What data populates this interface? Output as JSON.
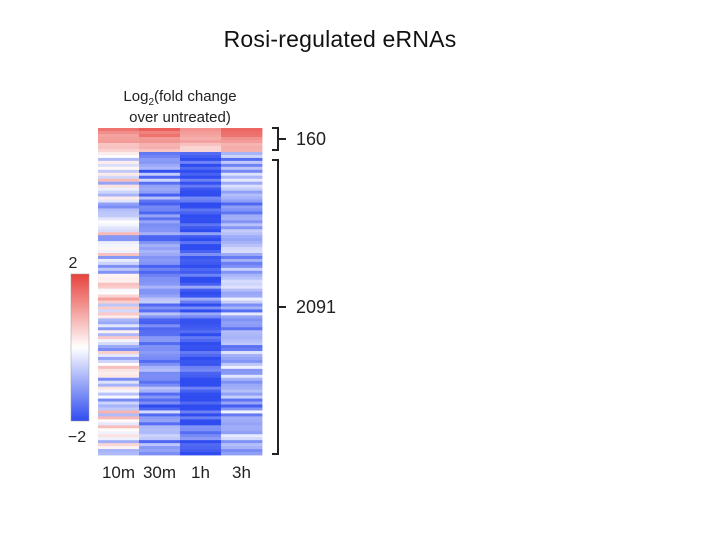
{
  "slide": {
    "title": "Rosi-regulated e​RNAs"
  },
  "chart_data": {
    "type": "heatmap",
    "title": "",
    "colorbar_title_base": "Log",
    "colorbar_title_sub": "2",
    "colorbar_title_rest": "(fold change",
    "colorbar_title_line2": "over untreated)",
    "colorbar_ticks": [
      "2",
      "−2"
    ],
    "value_range": [
      -2,
      2
    ],
    "colors": {
      "high": "#e8413b",
      "mid": "#ffffff",
      "low": "#2f4cf0"
    },
    "columns": [
      "10m",
      "30m",
      "1h",
      "3h"
    ],
    "groups": [
      {
        "label": "160",
        "rows": 160
      },
      {
        "label": "2091",
        "rows": 2091
      }
    ],
    "column_profiles": {
      "up": {
        "10m": 1.4,
        "30m": 1.6,
        "1h": 1.3,
        "3h": 1.5
      },
      "down": {
        "10m": -0.2,
        "30m": -1.2,
        "1h": -1.8,
        "3h": -0.9
      }
    }
  }
}
